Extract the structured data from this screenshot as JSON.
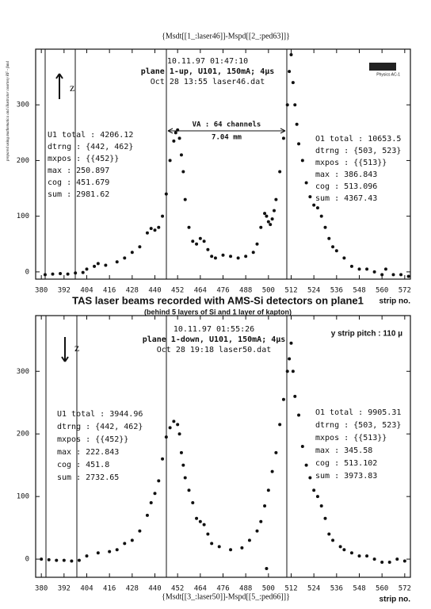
{
  "header": "{Msdt[[1_:laser46]]-Mspd[[2_:ped63]]}",
  "side_note": "prepared using mathematica and illustrator courtesy RF - fund",
  "caption": {
    "title": "TAS laser beams recorded with AMS-Si detectors on plane1",
    "subtitle": "(behind 5 layers of Si and 1 layer of kapton)"
  },
  "footer": "{Msdt[[3_:laser50]]-Mspd[[5_:ped66]]}",
  "chart_data": [
    {
      "type": "scatter",
      "xlabel": "strip no.",
      "z_label": "z",
      "logo": "Physics AC-1",
      "info_lines": [
        "10.11.97 01:47:10",
        "plane 1-up, U101, 150mA; 4µs",
        "Oct 28 13:55 laser46.dat"
      ],
      "va_label": "VA : 64 channels",
      "va_length": "7.04 mm",
      "left_stats": [
        "U1 total : 4206.12",
        "dtrng : {442, 462}",
        "mxpos : {{452}}",
        "max : 250.897",
        "cog : 451.679",
        "sum : 2981.62"
      ],
      "right_stats": [
        "O1 total : 10653.5",
        "dtrng : {503, 523}",
        "mxpos : {{513}}",
        "max : 386.843",
        "cog : 513.096",
        "sum : 4367.43"
      ],
      "x": [
        382,
        386,
        390,
        394,
        398,
        402,
        404,
        408,
        410,
        414,
        420,
        424,
        428,
        432,
        436,
        438,
        440,
        442,
        444,
        446,
        448,
        450,
        451,
        452,
        453,
        454,
        455,
        456,
        458,
        460,
        462,
        464,
        466,
        468,
        470,
        472,
        476,
        480,
        484,
        488,
        492,
        494,
        496,
        498,
        499,
        500,
        501,
        502,
        503,
        504,
        506,
        508,
        510,
        511,
        512,
        513,
        514,
        515,
        516,
        518,
        520,
        522,
        524,
        526,
        528,
        530,
        532,
        534,
        536,
        540,
        544,
        548,
        552,
        556,
        560,
        562,
        566,
        570,
        574
      ],
      "values": [
        -5,
        -4,
        -3,
        -4,
        -2,
        -1,
        5,
        10,
        15,
        12,
        18,
        25,
        35,
        45,
        70,
        78,
        75,
        80,
        100,
        140,
        200,
        235,
        250,
        255,
        240,
        210,
        180,
        130,
        80,
        55,
        50,
        60,
        55,
        40,
        28,
        25,
        30,
        28,
        25,
        28,
        35,
        50,
        80,
        105,
        100,
        90,
        85,
        95,
        110,
        130,
        180,
        240,
        300,
        360,
        390,
        340,
        300,
        265,
        230,
        200,
        160,
        135,
        120,
        115,
        100,
        80,
        60,
        45,
        38,
        25,
        10,
        5,
        5,
        0,
        -5,
        5,
        -5,
        -5,
        -8
      ],
      "color": "#111111",
      "xlim": [
        377,
        575
      ],
      "ylim": [
        -13,
        400
      ],
      "xticks": [
        380,
        392,
        404,
        416,
        428,
        440,
        452,
        464,
        476,
        488,
        500,
        512,
        524,
        536,
        548,
        560,
        572
      ],
      "yticks": [
        0,
        100,
        200,
        300
      ]
    },
    {
      "type": "scatter",
      "xlabel": "strip no.",
      "z_label": "z",
      "info_lines": [
        "10.11.97 01:55:26",
        "plane 1-down, U101, 150mA; 4µs",
        "Oct 28 19:18 laser50.dat"
      ],
      "pitch_label": "y strip pitch : 110 µ",
      "left_stats": [
        "U1 total : 3944.96",
        "dtrng : {442, 462}",
        "mxpos : {{452}}",
        "max : 222.843",
        "cog : 451.8",
        "sum : 2732.65"
      ],
      "right_stats": [
        "O1 total : 9905.31",
        "dtrng : {503, 523}",
        "mxpos : {{513}}",
        "max : 345.58",
        "cog : 513.102",
        "sum : 3973.83"
      ],
      "x": [
        380,
        384,
        388,
        392,
        396,
        400,
        404,
        410,
        416,
        420,
        424,
        428,
        432,
        436,
        438,
        440,
        442,
        444,
        446,
        448,
        450,
        452,
        453,
        454,
        455,
        456,
        458,
        460,
        462,
        464,
        466,
        468,
        470,
        474,
        480,
        486,
        490,
        494,
        496,
        498,
        499,
        500,
        502,
        504,
        506,
        508,
        510,
        511,
        512,
        513,
        514,
        516,
        518,
        520,
        522,
        524,
        526,
        528,
        530,
        532,
        534,
        538,
        540,
        544,
        548,
        552,
        556,
        560,
        564,
        568,
        572
      ],
      "values": [
        0,
        -1,
        -2,
        -2,
        -3,
        -2,
        5,
        10,
        12,
        15,
        25,
        30,
        45,
        70,
        90,
        105,
        125,
        160,
        195,
        210,
        220,
        215,
        200,
        170,
        150,
        130,
        110,
        90,
        65,
        60,
        55,
        40,
        25,
        20,
        15,
        18,
        30,
        45,
        60,
        85,
        -15,
        110,
        140,
        170,
        215,
        255,
        300,
        320,
        345,
        300,
        260,
        230,
        180,
        150,
        130,
        110,
        100,
        85,
        65,
        40,
        30,
        20,
        15,
        10,
        5,
        5,
        0,
        -5,
        -5,
        0,
        -3
      ],
      "color": "#111111",
      "xlim": [
        377,
        575
      ],
      "ylim": [
        -29,
        389
      ],
      "xticks": [
        380,
        392,
        404,
        416,
        428,
        440,
        452,
        464,
        476,
        488,
        500,
        512,
        524,
        536,
        548,
        560,
        572
      ],
      "yticks": [
        0,
        100,
        200,
        300
      ]
    }
  ]
}
